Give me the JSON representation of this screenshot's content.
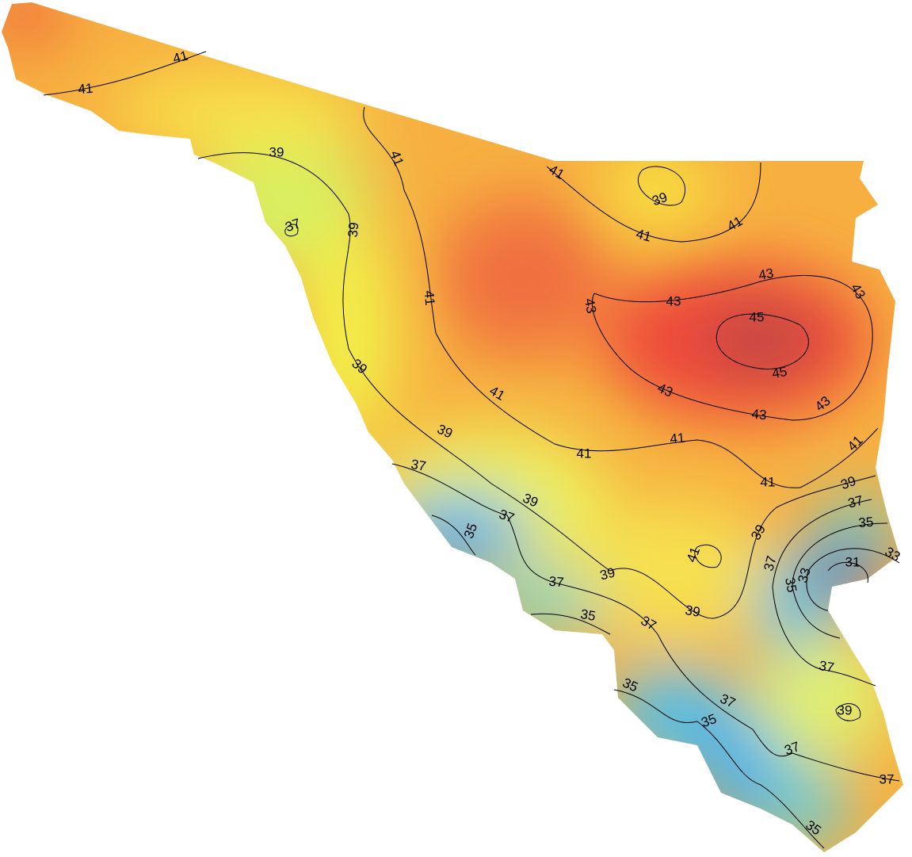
{
  "map": {
    "contour_labels": [
      41,
      41,
      39,
      41,
      41,
      39,
      37,
      39,
      41,
      41,
      43,
      43,
      43,
      43,
      45,
      45,
      41,
      39,
      41,
      43,
      43,
      43,
      39,
      41,
      41,
      41,
      37,
      41,
      39,
      37,
      39,
      37,
      35,
      35,
      39,
      41,
      33,
      31,
      37,
      33,
      35,
      39,
      37,
      39,
      35,
      37,
      37,
      35,
      37,
      39,
      35,
      37,
      37,
      35
    ]
  }
}
